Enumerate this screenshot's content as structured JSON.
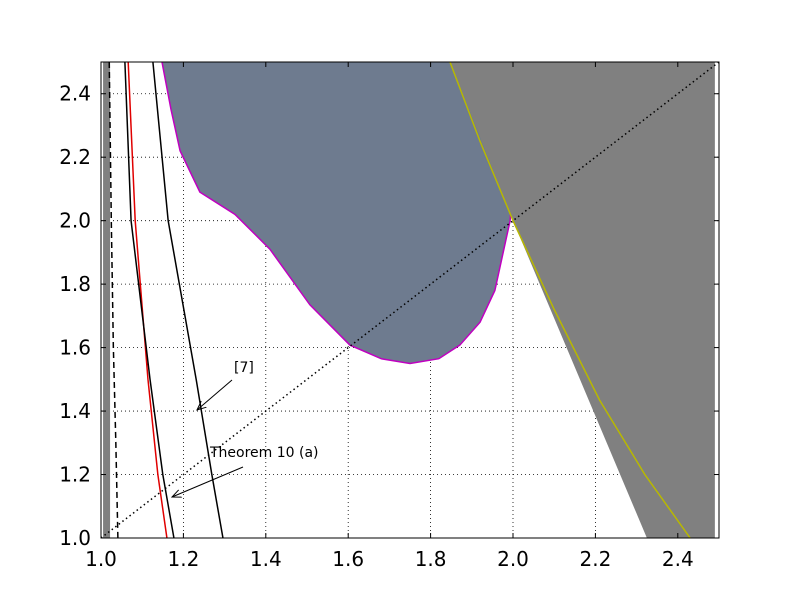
{
  "chart_data": {
    "type": "region-plot",
    "xlim": [
      1.0,
      2.5
    ],
    "ylim": [
      1.0,
      2.5
    ],
    "xticks": [
      {
        "value": 1.0,
        "label": "1.0"
      },
      1.2,
      1.4,
      1.6,
      1.8,
      {
        "value": 2.0,
        "label": "2.0"
      },
      2.2,
      2.4
    ],
    "yticks": [
      {
        "value": 1.0,
        "label": "1.0"
      },
      1.2,
      1.4,
      1.6,
      1.8,
      {
        "value": 2.0,
        "label": "2.0"
      },
      2.2,
      2.4
    ],
    "grid": true,
    "regions": [
      {
        "color": "#6e7b8f",
        "edge": "#c000c0",
        "x": [
          1.148,
          1.17,
          1.192,
          1.24,
          1.325,
          1.41,
          1.507,
          1.604,
          1.68,
          1.75,
          1.82,
          1.871,
          1.92,
          1.956,
          1.993,
          2.005,
          2.012
        ],
        "y": [
          2.5,
          2.35,
          2.22,
          2.09,
          2.02,
          1.91,
          1.735,
          1.608,
          1.565,
          1.55,
          1.565,
          1.608,
          1.68,
          1.78,
          2.0,
          2.22,
          2.5
        ]
      },
      {
        "color": "#808080",
        "edge": null,
        "x": [
          2.0,
          1.848,
          2.49,
          2.49,
          2.325
        ],
        "y": [
          2.0,
          2.5,
          2.5,
          1.0,
          1.0
        ]
      },
      {
        "color": "#808080",
        "edge": null,
        "x": [
          1.005,
          1.022,
          1.022,
          1.005
        ],
        "y": [
          1.0,
          1.0,
          2.5,
          2.5
        ]
      }
    ],
    "series": [
      {
        "color": "#000000",
        "dash": "dashed",
        "x": [
          1.02,
          1.025,
          1.03,
          1.036,
          1.041
        ],
        "y": [
          2.5,
          2.0,
          1.6,
          1.3,
          1.0
        ]
      },
      {
        "color": "#e00000",
        "dash": "solid",
        "x": [
          1.066,
          1.083,
          1.114,
          1.138,
          1.16
        ],
        "y": [
          2.5,
          2.0,
          1.5,
          1.2,
          1.0
        ]
      },
      {
        "color": "#000000",
        "dash": "solid",
        "x": [
          1.058,
          1.073,
          1.119,
          1.15,
          1.177
        ],
        "y": [
          2.5,
          2.0,
          1.5,
          1.2,
          1.0
        ]
      },
      {
        "color": "#000000",
        "dash": "solid",
        "x": [
          1.126,
          1.163,
          1.231,
          1.269,
          1.296
        ],
        "y": [
          2.5,
          2.0,
          1.5,
          1.2,
          1.0
        ]
      },
      {
        "color": "#000000",
        "dash": "dotted",
        "x": [
          1.0,
          2.5
        ],
        "y": [
          1.0,
          2.5
        ]
      },
      {
        "color": "#b8b800",
        "dash": "solid",
        "x": [
          1.847,
          1.92,
          2.0,
          2.1,
          2.21,
          2.32,
          2.43
        ],
        "y": [
          2.5,
          2.25,
          2.0,
          1.72,
          1.435,
          1.2,
          1.0
        ]
      }
    ],
    "annotations": [
      "[7]",
      "Theorem 10 (a)"
    ]
  }
}
